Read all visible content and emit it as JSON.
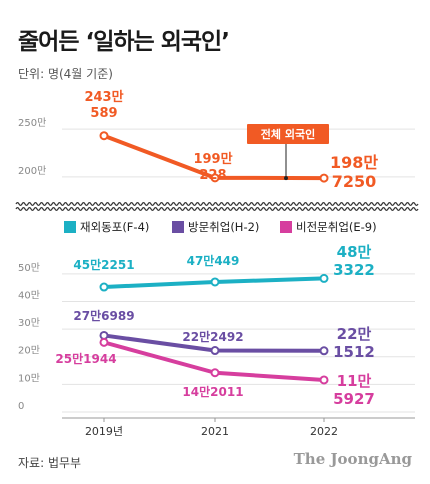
{
  "title": "줄어든 ‘일하는 외국인’",
  "unit_label": "단위: 명(4월 기준)",
  "source": "자료: 법무부",
  "brand": "The JoongAng",
  "colors": {
    "total": "#f15a24",
    "f4": "#1cb0c4",
    "h2": "#6a4ea3",
    "e9": "#d63e9e"
  },
  "chart_data": [
    {
      "type": "line",
      "ylim": [
        1800000,
        2700000
      ],
      "yticks": [
        2000000,
        2500000
      ],
      "ytick_labels": [
        "200만",
        "250만"
      ],
      "series": [
        {
          "name": "전체 외국인",
          "key": "total",
          "x": [
            "2019년",
            "2021",
            "2022"
          ],
          "values": [
            2430589,
            1990228,
            1987250
          ],
          "labels": [
            [
              "243만",
              "589"
            ],
            [
              "199만",
              "228"
            ],
            [
              "198만",
              "7250"
            ]
          ]
        }
      ]
    },
    {
      "type": "line",
      "ylim": [
        0,
        550000
      ],
      "yticks": [
        0,
        100000,
        200000,
        300000,
        400000,
        500000
      ],
      "ytick_labels": [
        "0",
        "10만",
        "20만",
        "30만",
        "40만",
        "50만"
      ],
      "x": [
        "2019년",
        "2021",
        "2022"
      ],
      "series": [
        {
          "name": "재외동포(F-4)",
          "key": "f4",
          "values": [
            452251,
            470449,
            483322
          ],
          "labels": [
            [
              "45만2251"
            ],
            [
              "47만449"
            ],
            [
              "48만",
              "3322"
            ]
          ]
        },
        {
          "name": "방문취업(H-2)",
          "key": "h2",
          "values": [
            276989,
            222492,
            221512
          ],
          "labels": [
            [
              "27만6989"
            ],
            [
              "22만2492"
            ],
            [
              "22만",
              "1512"
            ]
          ]
        },
        {
          "name": "비전문취업(E-9)",
          "key": "e9",
          "values": [
            251944,
            142011,
            115927
          ],
          "labels": [
            [
              "25만1944"
            ],
            [
              "14만2011"
            ],
            [
              "11만",
              "5927"
            ]
          ]
        }
      ]
    }
  ]
}
